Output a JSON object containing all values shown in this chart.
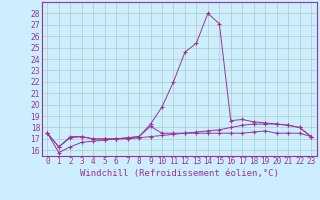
{
  "x": [
    0,
    1,
    2,
    3,
    4,
    5,
    6,
    7,
    8,
    9,
    10,
    11,
    12,
    13,
    14,
    15,
    16,
    17,
    18,
    19,
    20,
    21,
    22,
    23
  ],
  "line1": [
    17.5,
    16.3,
    17.1,
    17.2,
    17.0,
    17.0,
    17.0,
    17.1,
    17.2,
    18.1,
    17.5,
    17.5,
    17.5,
    17.5,
    17.5,
    17.5,
    17.5,
    17.5,
    17.6,
    17.7,
    17.5,
    17.5,
    17.5,
    17.2
  ],
  "line2": [
    17.5,
    15.8,
    16.3,
    16.7,
    16.8,
    16.9,
    17.0,
    17.0,
    17.1,
    17.2,
    17.3,
    17.4,
    17.5,
    17.6,
    17.7,
    17.8,
    18.0,
    18.2,
    18.3,
    18.3,
    18.3,
    18.2,
    18.0,
    17.2
  ],
  "line3": [
    17.5,
    16.3,
    17.2,
    17.2,
    17.0,
    17.0,
    17.0,
    17.1,
    17.2,
    18.3,
    19.8,
    22.0,
    24.6,
    25.4,
    28.0,
    27.1,
    18.6,
    18.7,
    18.5,
    18.4,
    18.3,
    18.2,
    18.0,
    17.2
  ],
  "line_color": "#993399",
  "bg_color": "#cceeff",
  "grid_color": "#aaccbb",
  "ylim": [
    15.5,
    29.0
  ],
  "yticks": [
    16,
    17,
    18,
    19,
    20,
    21,
    22,
    23,
    24,
    25,
    26,
    27,
    28
  ],
  "xtick_labels": [
    "0",
    "1",
    "2",
    "3",
    "4",
    "5",
    "6",
    "7",
    "8",
    "9",
    "10",
    "11",
    "12",
    "13",
    "14",
    "15",
    "16",
    "17",
    "18",
    "19",
    "20",
    "21",
    "22",
    "23"
  ],
  "xlabel": "Windchill (Refroidissement éolien,°C)",
  "xlabel_fontsize": 6.5,
  "tick_fontsize": 5.5
}
